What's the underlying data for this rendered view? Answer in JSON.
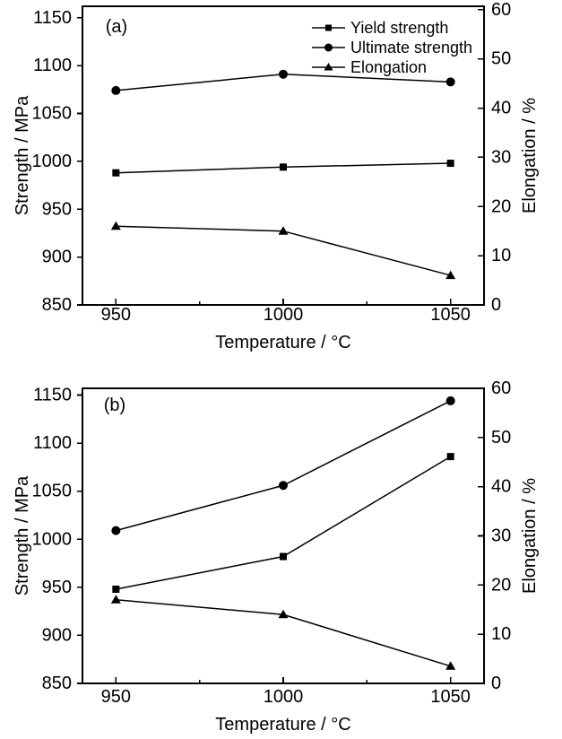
{
  "figure": {
    "background": "#ffffff",
    "line_color": "#000000"
  },
  "chart_data": [
    {
      "id": "a",
      "type": "line",
      "panel_label": "(a)",
      "xlabel": "Temperature / °C",
      "ylabel_left": "Strength / MPa",
      "ylabel_right": "Elongation / %",
      "x_range": [
        940,
        1060
      ],
      "x_major_ticks": [
        950,
        1000,
        1050
      ],
      "x_minor_ticks": [
        975,
        1025
      ],
      "y_left_range": [
        850,
        1162
      ],
      "y_left_ticks": [
        850,
        900,
        950,
        1000,
        1050,
        1100,
        1150
      ],
      "y_right_range": [
        0,
        60.7
      ],
      "y_right_ticks": [
        0,
        10,
        20,
        30,
        40,
        50,
        60
      ],
      "grid": false,
      "show_legend": true,
      "legend_position": "top-right-inside",
      "series": [
        {
          "name": "Yield strength",
          "marker": "square",
          "axis": "left",
          "x": [
            950,
            1000,
            1050
          ],
          "values": [
            988,
            994,
            998
          ]
        },
        {
          "name": "Ultimate strength",
          "marker": "circle",
          "axis": "left",
          "x": [
            950,
            1000,
            1050
          ],
          "values": [
            1074,
            1091,
            1083
          ]
        },
        {
          "name": "Elongation",
          "marker": "triangle",
          "axis": "right",
          "x": [
            950,
            1000,
            1050
          ],
          "values": [
            16,
            15,
            6
          ]
        }
      ]
    },
    {
      "id": "b",
      "type": "line",
      "panel_label": "(b)",
      "xlabel": "Temperature / °C",
      "ylabel_left": "Strength / MPa",
      "ylabel_right": "Elongation / %",
      "x_range": [
        940,
        1060
      ],
      "x_major_ticks": [
        950,
        1000,
        1050
      ],
      "x_minor_ticks": [
        975,
        1025
      ],
      "y_left_range": [
        850,
        1157
      ],
      "y_left_ticks": [
        850,
        900,
        950,
        1000,
        1050,
        1100,
        1150
      ],
      "y_right_range": [
        0,
        60
      ],
      "y_right_ticks": [
        0,
        10,
        20,
        30,
        40,
        50,
        60
      ],
      "grid": false,
      "show_legend": false,
      "series": [
        {
          "name": "Yield strength",
          "marker": "square",
          "axis": "left",
          "x": [
            950,
            1000,
            1050
          ],
          "values": [
            948,
            982,
            1086
          ]
        },
        {
          "name": "Ultimate strength",
          "marker": "circle",
          "axis": "left",
          "x": [
            950,
            1000,
            1050
          ],
          "values": [
            1009,
            1056,
            1144
          ]
        },
        {
          "name": "Elongation",
          "marker": "triangle",
          "axis": "right",
          "x": [
            950,
            1000,
            1050
          ],
          "values": [
            17,
            14,
            3.5
          ]
        }
      ]
    }
  ]
}
